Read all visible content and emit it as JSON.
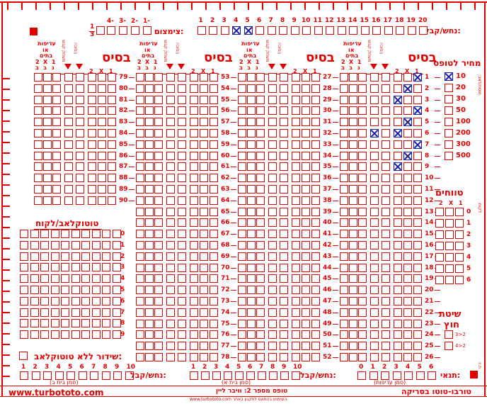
{
  "labels": {
    "nachash": "נחש/קבל:",
    "tzimzum": "צימצום:",
    "fraction_num": "1",
    "fraction_den": "3",
    "mechir": "מחיר לטופס",
    "basis": "בסיס",
    "adifut": "עדיפות",
    "o": "או",
    "batim": "בתים",
    "mischak_kavua": "משחק קבוע",
    "hafucha": "הפוכה",
    "tvachim": "טווחים",
    "toto_title": "טוטוקלאב/לקוח",
    "shita": "שיטת",
    "chutz": "חוץ",
    "shidur": "שידור ללא טוטוקלאב:",
    "tnai": "תנאי:",
    "simun_b": "(סמן בית ב)",
    "simun_a": "(סמן בית א)",
    "simun_adifut": "(סמן עדיפות)",
    "website": "www.turbototo.com",
    "form_name": "טופס מספר 2: וויבר ליין",
    "brand": "טורבו-טוטו בסריקה",
    "footer_small": "www.turbototo.com השימוש בהתאם לתקנון באתר",
    "side_top": ":טוטוקלאב",
    "side_mid": ":לקוח",
    "side_bot": ":ת.ז"
  },
  "markers": {
    "col_2": "2",
    "col_x": "X",
    "col_1": "1",
    "heb_b": "ב",
    "heb_g": "ג"
  },
  "top_numbers": [
    "20",
    "19",
    "18",
    "17",
    "16",
    "15",
    "14",
    "13",
    "12",
    "11",
    "10",
    "9",
    "8",
    "7",
    "6",
    "5",
    "4",
    "3",
    "2",
    "1"
  ],
  "top_marked": [
    "4",
    "5"
  ],
  "tzimzum_numbers": [
    "1-",
    "2-",
    "3-",
    "4-"
  ],
  "price_options": [
    "10",
    "20",
    "30",
    "50",
    "100",
    "200",
    "300",
    "500"
  ],
  "price_selected": "10",
  "tvachim_rows": [
    "0",
    "1",
    "2",
    "3",
    "4",
    "5",
    "6"
  ],
  "totoclub_rows": [
    "0",
    "1",
    "2",
    "3",
    "4",
    "5",
    "6",
    "7",
    "8",
    "9"
  ],
  "shita_options": [
    "3>2",
    "4>2"
  ],
  "bottom_left_numbers": [
    "1",
    "2",
    "3",
    "4",
    "5",
    "6",
    "7",
    "8",
    "9",
    "10"
  ],
  "bottom_mid_numbers": [
    "1",
    "2",
    "3",
    "4",
    "5",
    "6",
    "7",
    "8",
    "9",
    "10"
  ],
  "bottom_right_numbers": [
    "0",
    "1",
    "2",
    "3",
    "4",
    "5",
    "6"
  ],
  "column_block_1_games": [
    "1",
    "2",
    "3",
    "4",
    "5",
    "6",
    "7",
    "8",
    "9",
    "10",
    "11",
    "12",
    "13",
    "14",
    "15",
    "16",
    "17",
    "18",
    "19",
    "20",
    "21",
    "22",
    "23",
    "24",
    "25",
    "26"
  ],
  "column_block_2_games": [
    "27",
    "28",
    "29",
    "30",
    "31",
    "32",
    "33",
    "34",
    "35",
    "36",
    "37",
    "38",
    "39",
    "40",
    "41",
    "42",
    "43",
    "44",
    "45",
    "46",
    "47",
    "48",
    "49",
    "50",
    "51",
    "52"
  ],
  "column_block_3_games": [
    "53",
    "54",
    "55",
    "56",
    "57",
    "58",
    "59",
    "60",
    "61",
    "62",
    "63",
    "64",
    "65",
    "66",
    "67",
    "68",
    "69",
    "70",
    "71",
    "72",
    "73",
    "74",
    "75",
    "76",
    "77",
    "78"
  ],
  "column_block_4_games": [
    "79",
    "80",
    "81",
    "82",
    "83",
    "84",
    "85",
    "86",
    "87",
    "88",
    "89",
    "90"
  ],
  "marks_block_1": [
    {
      "game": "1",
      "col": "1"
    },
    {
      "game": "2",
      "col": "X"
    },
    {
      "game": "3",
      "col": "2"
    },
    {
      "game": "4",
      "col": "1"
    },
    {
      "game": "5",
      "col": "X"
    },
    {
      "game": "6",
      "col": "2"
    },
    {
      "game": "6",
      "col": "fixed"
    },
    {
      "game": "7",
      "col": "1"
    },
    {
      "game": "8",
      "col": "X"
    },
    {
      "game": "9",
      "col": "2"
    }
  ]
}
